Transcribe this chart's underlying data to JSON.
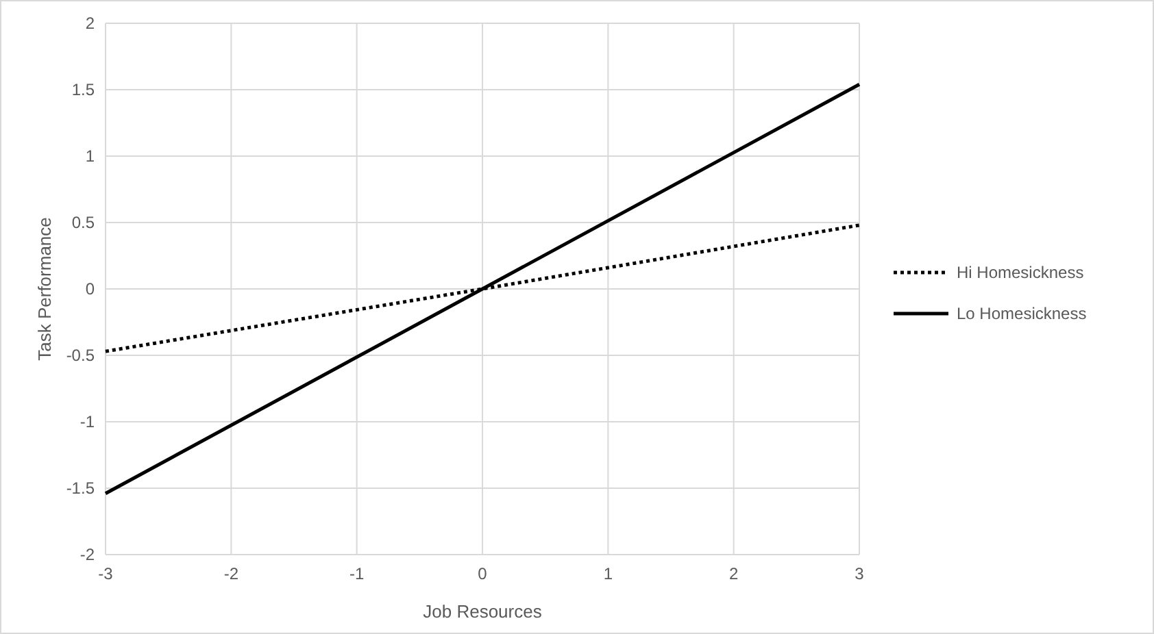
{
  "chart_data": {
    "type": "line",
    "xlabel": "Job Resources",
    "ylabel": "Task Performance",
    "x": [
      -3,
      0,
      3
    ],
    "series": [
      {
        "name": "Hi Homesickness",
        "color": "#000000",
        "line_style": "dotted",
        "values": [
          -0.47,
          0,
          0.48
        ]
      },
      {
        "name": "Lo Homesickness",
        "color": "#000000",
        "line_style": "solid",
        "values": [
          -1.54,
          0,
          1.54
        ]
      }
    ],
    "xlim": [
      -3,
      3
    ],
    "xticks": [
      -3,
      -2,
      -1,
      0,
      1,
      2,
      3
    ],
    "ylim": [
      -2,
      2
    ],
    "yticks": [
      -2,
      -1.5,
      -1,
      -0.5,
      0,
      0.5,
      1,
      1.5,
      2
    ],
    "grid": true,
    "legend": "right",
    "marker": "none"
  }
}
